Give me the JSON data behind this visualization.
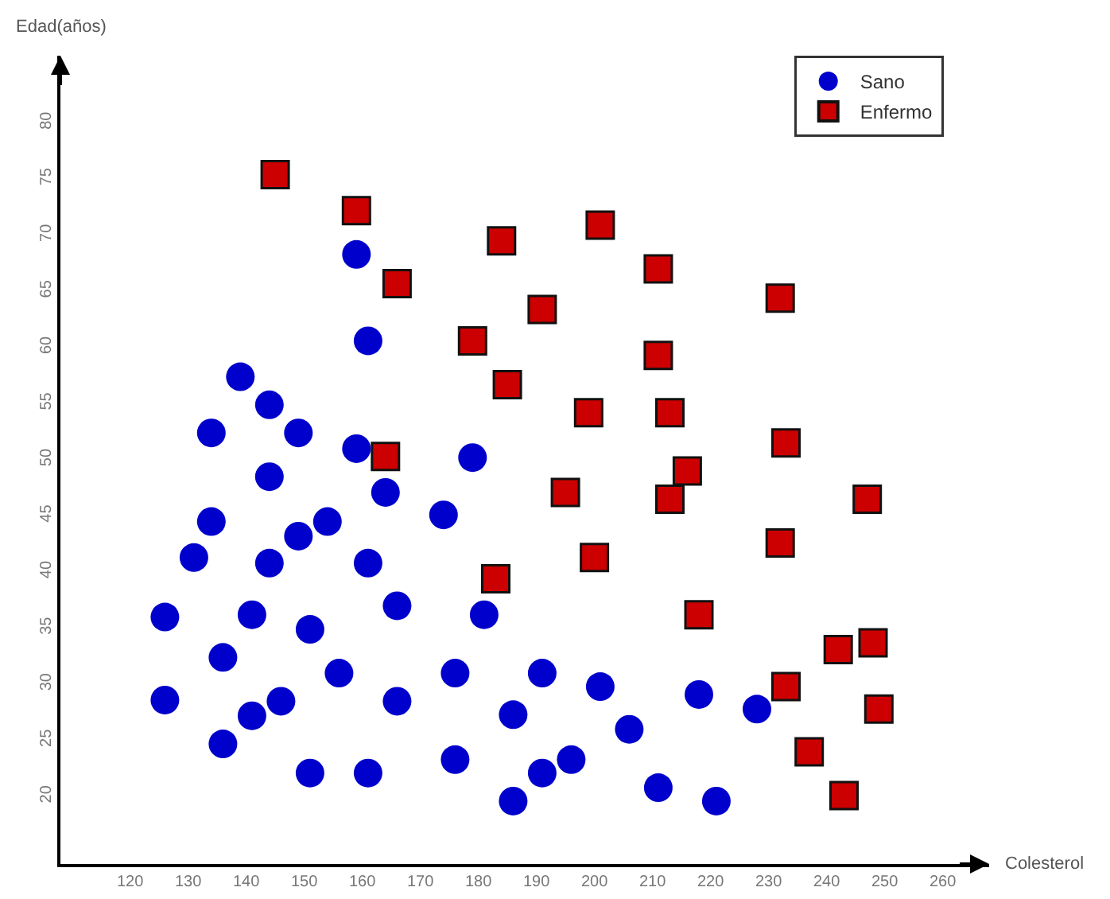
{
  "chart_data": {
    "type": "scatter",
    "xlabel": "Colesterol",
    "ylabel": "Edad(años)",
    "xlim": [
      108,
      268
    ],
    "xticks": [
      120,
      130,
      140,
      150,
      160,
      170,
      180,
      190,
      200,
      210,
      220,
      230,
      240,
      250,
      260
    ],
    "ylim": [
      14,
      86
    ],
    "yticks": [
      20,
      25,
      30,
      35,
      40,
      45,
      50,
      55,
      60,
      65,
      70,
      75,
      80
    ],
    "grid": false,
    "legend": "top right",
    "series": [
      {
        "name": "Sano",
        "color": "#0000cc",
        "marker": "circle",
        "x": [
          126,
          126,
          136,
          136,
          131,
          134,
          134,
          139,
          144,
          144,
          149,
          144,
          141,
          141,
          146,
          149,
          154,
          151,
          151,
          156,
          159,
          159,
          161,
          161,
          161,
          164,
          166,
          166,
          174,
          179,
          176,
          176,
          181,
          186,
          186,
          191,
          191,
          196,
          201,
          206,
          211,
          218,
          221,
          228
        ],
        "values": [
          36,
          28.6,
          24.7,
          32.4,
          41.3,
          44.5,
          52.4,
          57.4,
          54.9,
          48.5,
          52.4,
          40.8,
          36.2,
          27.2,
          28.5,
          43.2,
          44.5,
          34.9,
          22.1,
          31,
          68.3,
          51,
          60.6,
          40.8,
          22.1,
          47.1,
          37,
          28.5,
          45.1,
          50.2,
          31,
          23.3,
          36.2,
          27.3,
          19.6,
          31,
          22.1,
          23.3,
          29.8,
          26,
          20.8,
          29.1,
          19.6,
          27.8
        ]
      },
      {
        "name": "Enfermo",
        "color": "#cc0000",
        "marker": "square",
        "x": [
          145,
          159,
          166,
          164,
          179,
          184,
          185,
          191,
          201,
          211,
          211,
          199,
          213,
          216,
          213,
          195,
          200,
          183,
          218,
          232,
          233,
          232,
          247,
          233,
          242,
          248,
          249,
          237,
          243
        ],
        "values": [
          75.4,
          72.2,
          65.7,
          50.3,
          60.6,
          69.5,
          56.7,
          63.4,
          70.9,
          67,
          59.3,
          54.2,
          54.2,
          49,
          46.5,
          47.1,
          41.3,
          39.4,
          36.2,
          64.4,
          51.5,
          42.6,
          46.5,
          29.8,
          33.1,
          33.7,
          27.8,
          24,
          20.1
        ]
      }
    ]
  }
}
